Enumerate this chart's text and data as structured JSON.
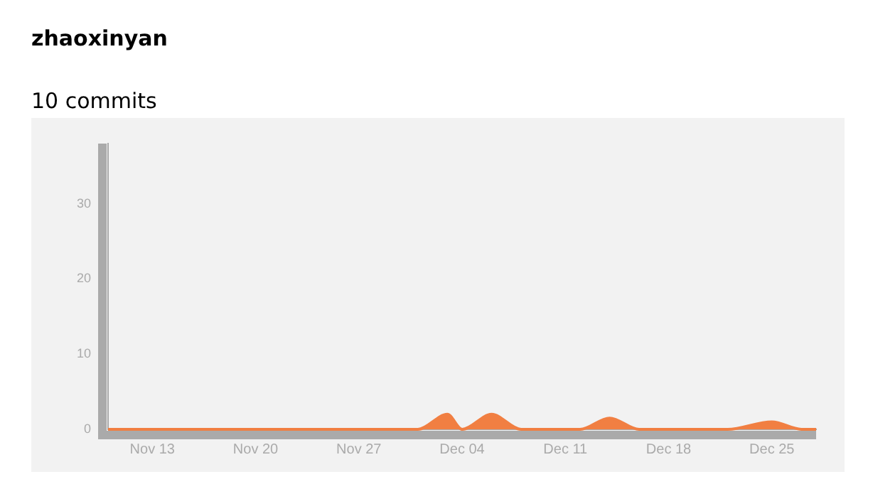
{
  "chart_data": {
    "type": "area",
    "title": "zhaoxinyan",
    "subtitle": "10 commits",
    "x": [
      "--11-10",
      "--12-01",
      "--12-03",
      "--12-04",
      "--12-06",
      "--12-08",
      "--12-12",
      "--12-14",
      "--12-16",
      "--12-22",
      "--12-25",
      "--12-27",
      "--12-28"
    ],
    "values": [
      0,
      0,
      2,
      0,
      2,
      0,
      0,
      1.5,
      0,
      0,
      1,
      0,
      0
    ],
    "color": "#f17f42",
    "xlim": [
      "--11-10",
      "--12-28"
    ],
    "xticks": [
      {
        "value": "--11-13",
        "label": "Nov 13"
      },
      {
        "value": "--11-20",
        "label": "Nov 20"
      },
      {
        "value": "--11-27",
        "label": "Nov 27"
      },
      {
        "value": "--12-04",
        "label": "Dec 04"
      },
      {
        "value": "--12-11",
        "label": "Dec 11"
      },
      {
        "value": "--12-18",
        "label": "Dec 18"
      },
      {
        "value": "--12-25",
        "label": "Dec 25"
      }
    ],
    "ylim": [
      0,
      38
    ],
    "yticks": [
      0,
      10,
      20,
      30
    ],
    "grid": false,
    "legend": false
  }
}
